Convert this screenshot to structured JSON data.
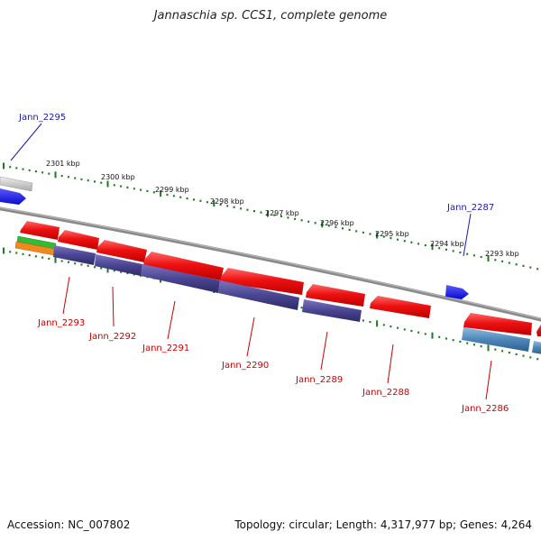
{
  "title": "Jannaschia sp. CCS1, complete genome",
  "footer": {
    "accession": "Accession: NC_007802",
    "stats": "Topology: circular; Length: 4,317,977 bp; Genes: 4,264"
  },
  "scale_labels": [
    "2301 kbp",
    "2300 kbp",
    "2299 kbp",
    "2298 kbp",
    "2297 kbp",
    "2296 kbp",
    "2295 kbp",
    "2294 kbp",
    "2293 kbp"
  ],
  "gene_labels_top": [
    "Jann_2295",
    "Jann_2287"
  ],
  "gene_labels_bottom": [
    "Jann_2293",
    "Jann_2292",
    "Jann_2291",
    "Jann_2290",
    "Jann_2289",
    "Jann_2288",
    "Jann_2286"
  ],
  "colors": {
    "gene_red": "#e51111",
    "gene_blue": "#1a1aee",
    "cds_purple": "#4a4592",
    "cds_steel": "#4f86b8",
    "backbone": "#8a8a8a",
    "tick_green": "#1e7a1e",
    "label_blue": "#1a1aaa",
    "label_red": "#cc0000",
    "rna_green": "#33bb33",
    "rna_orange": "#f08a20",
    "pseudo_gray": "#c9c9c9"
  }
}
